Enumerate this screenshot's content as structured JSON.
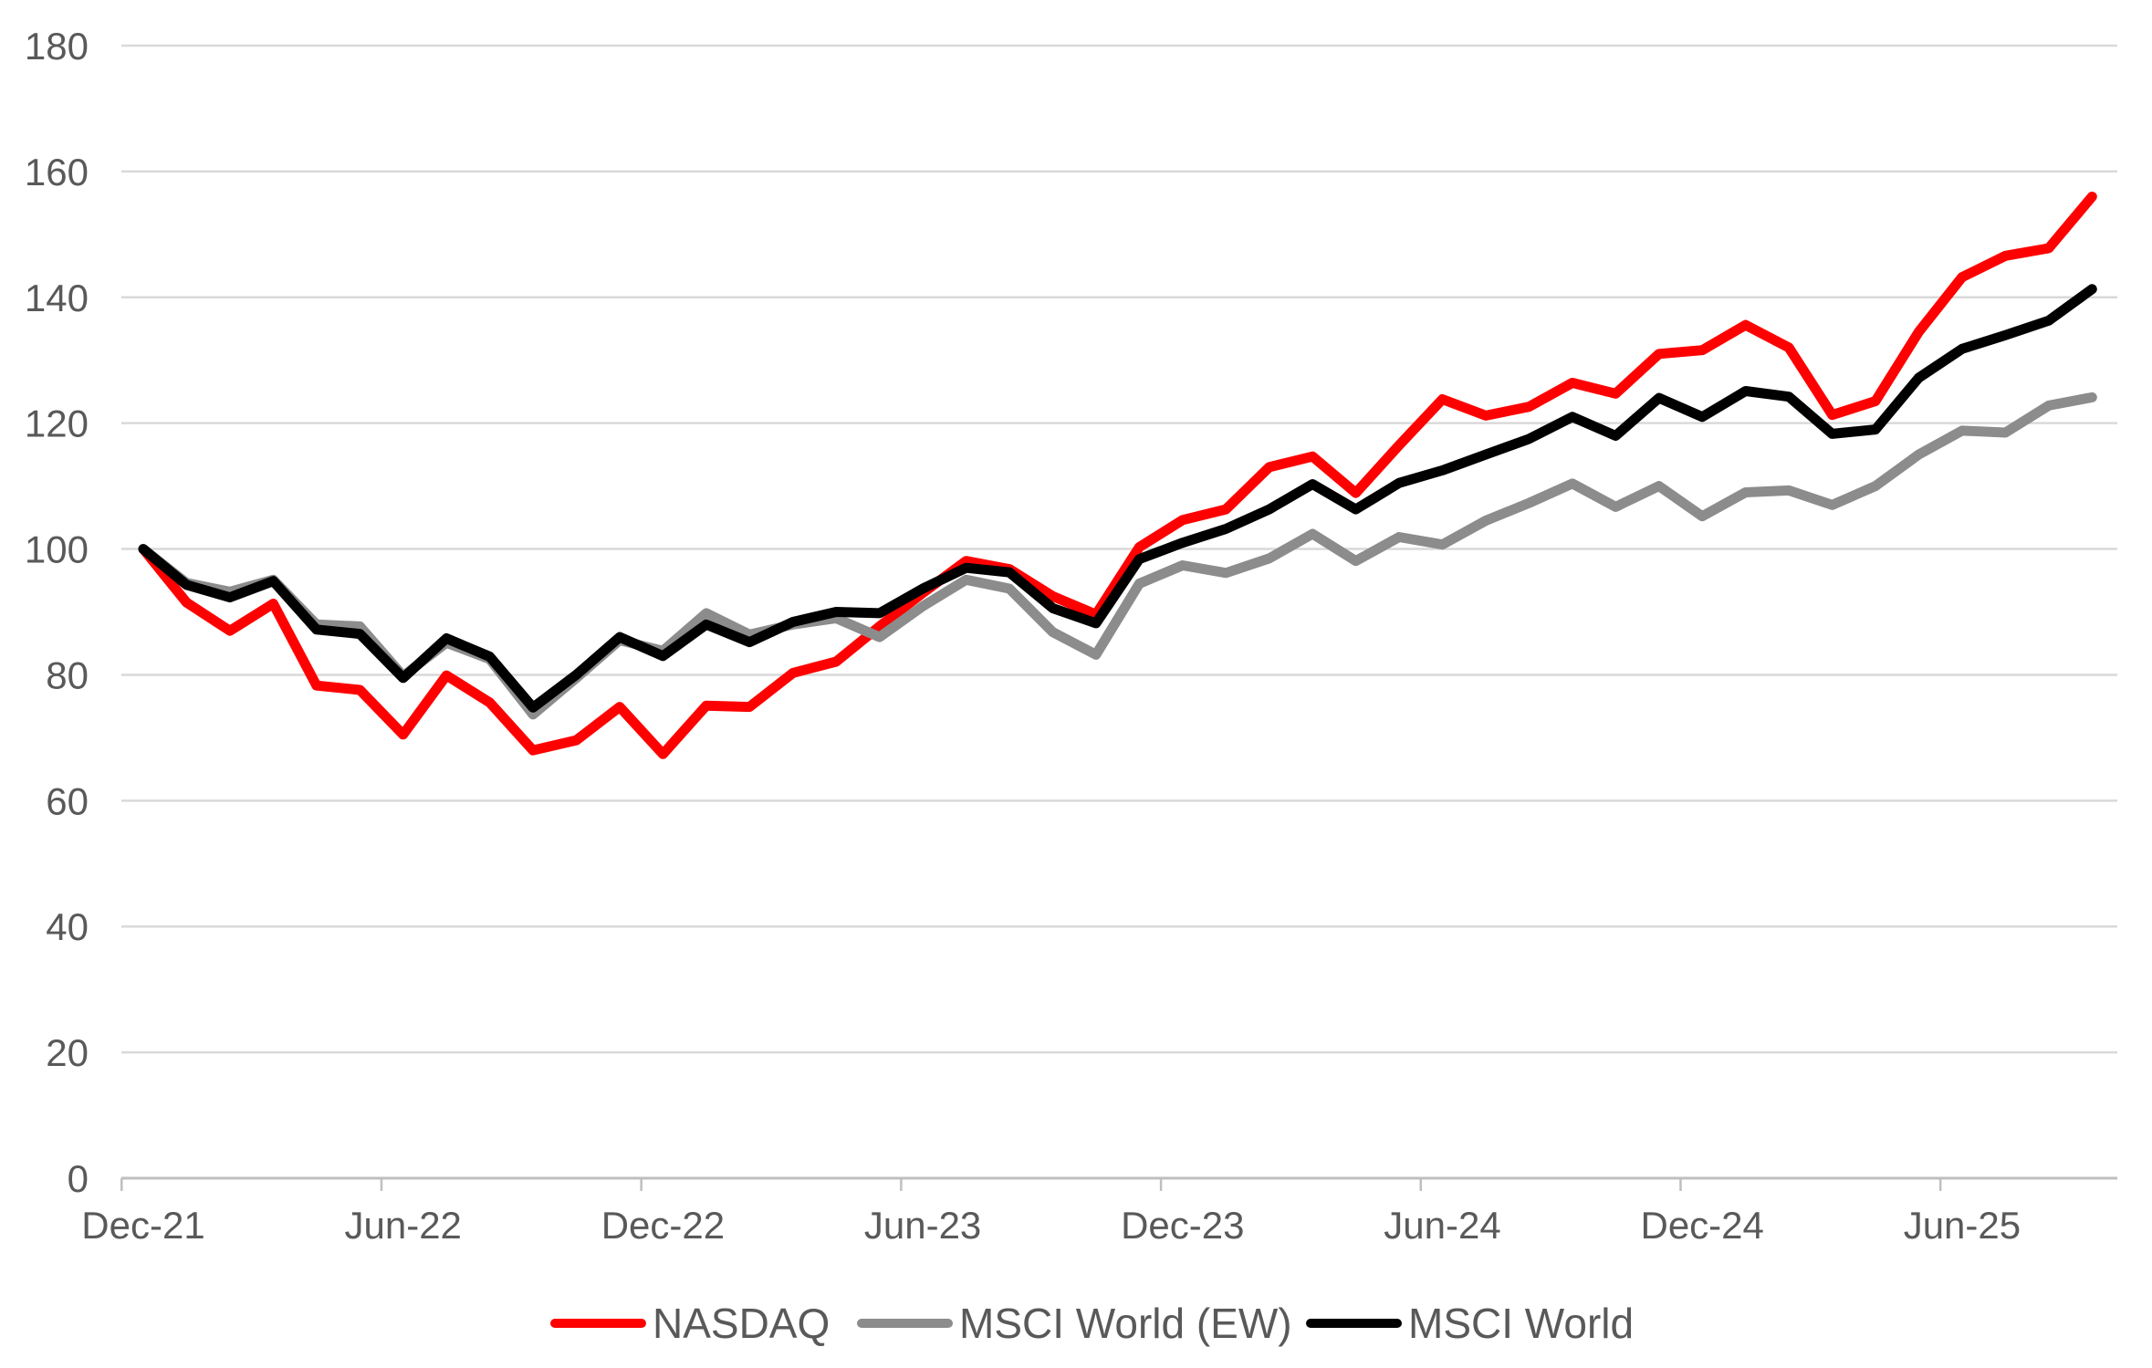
{
  "chart_data": {
    "type": "line",
    "title": "",
    "x_label": "",
    "y_label": "",
    "ylim": [
      0,
      180
    ],
    "y_step": 20,
    "grid": "horizontal",
    "legend_position": "bottom-center",
    "x": [
      "Dec-21",
      "Jan-22",
      "Feb-22",
      "Mar-22",
      "Apr-22",
      "May-22",
      "Jun-22",
      "Jul-22",
      "Aug-22",
      "Sep-22",
      "Oct-22",
      "Nov-22",
      "Dec-22",
      "Jan-23",
      "Feb-23",
      "Mar-23",
      "Apr-23",
      "May-23",
      "Jun-23",
      "Jul-23",
      "Aug-23",
      "Sep-23",
      "Oct-23",
      "Nov-23",
      "Dec-23",
      "Jan-24",
      "Feb-24",
      "Mar-24",
      "Apr-24",
      "May-24",
      "Jun-24",
      "Jul-24",
      "Aug-24",
      "Sep-24",
      "Oct-24",
      "Nov-24",
      "Dec-24",
      "Jan-25",
      "Feb-25",
      "Mar-25",
      "Apr-25",
      "May-25",
      "Jun-25",
      "Jul-25",
      "Aug-25",
      "Sep-25"
    ],
    "x_tick_interval": 6,
    "x_tick_labels": [
      "Dec-21",
      "Jun-22",
      "Dec-22",
      "Jun-23",
      "Dec-23",
      "Jun-24",
      "Dec-24",
      "Jun-25"
    ],
    "y_tick_labels": [
      "0",
      "20",
      "40",
      "60",
      "80",
      "100",
      "120",
      "140",
      "160",
      "180"
    ],
    "series": [
      {
        "name": "NASDAQ",
        "color": "#FF0000",
        "values": [
          100,
          91.5,
          87,
          91.3,
          78.3,
          77.6,
          70.5,
          79.9,
          75.6,
          68,
          69.6,
          74.9,
          67.4,
          75.1,
          74.9,
          80.3,
          82.1,
          87.7,
          93,
          98.1,
          96.8,
          92.5,
          89.6,
          100.3,
          104.6,
          106.3,
          113,
          114.7,
          108.9,
          116.5,
          123.8,
          121.2,
          122.6,
          126.4,
          124.7,
          131,
          131.6,
          135.6,
          132,
          121.3,
          123.5,
          134.5,
          143.2,
          146.6,
          147.8,
          156
        ]
      },
      {
        "name": "MSCI World (EW)",
        "color": "#8C8C8C",
        "values": [
          100,
          94.6,
          93.2,
          95.1,
          88,
          87.7,
          79.8,
          85.1,
          82.5,
          73.7,
          79.5,
          85.5,
          83.8,
          89.8,
          86.4,
          88,
          89,
          86,
          90.9,
          95.1,
          93.7,
          86.8,
          83.2,
          94.5,
          97.4,
          96.2,
          98.5,
          102.4,
          98.1,
          101.9,
          100.7,
          104.5,
          107.3,
          110.4,
          106.7,
          110,
          105.2,
          109,
          109.3,
          107,
          110,
          115,
          118.8,
          118.5,
          122.8,
          124.1
        ]
      },
      {
        "name": "MSCI World",
        "color": "#000000",
        "values": [
          100,
          94.3,
          92.3,
          94.9,
          87.2,
          86.5,
          79.5,
          85.8,
          82.9,
          74.8,
          80,
          86,
          83,
          88,
          85.2,
          88.4,
          90,
          89.8,
          93.7,
          97,
          96.3,
          90.6,
          88.2,
          98.4,
          101,
          103.2,
          106.3,
          110.3,
          106.3,
          110.5,
          112.5,
          115,
          117.5,
          121,
          118,
          124,
          121,
          125.1,
          124.2,
          118.3,
          119,
          127.2,
          131.8,
          134,
          136.3,
          141.3
        ]
      }
    ]
  },
  "colors": {
    "background": "#FFFFFF",
    "gridline": "#D9D9D9",
    "axis_line": "#BFBFBF",
    "tick_mark": "#BFBFBF",
    "axis_label": "#595959",
    "legend_label": "#595959"
  },
  "legend": {
    "items": [
      "NASDAQ",
      "MSCI World (EW)",
      "MSCI World"
    ]
  }
}
